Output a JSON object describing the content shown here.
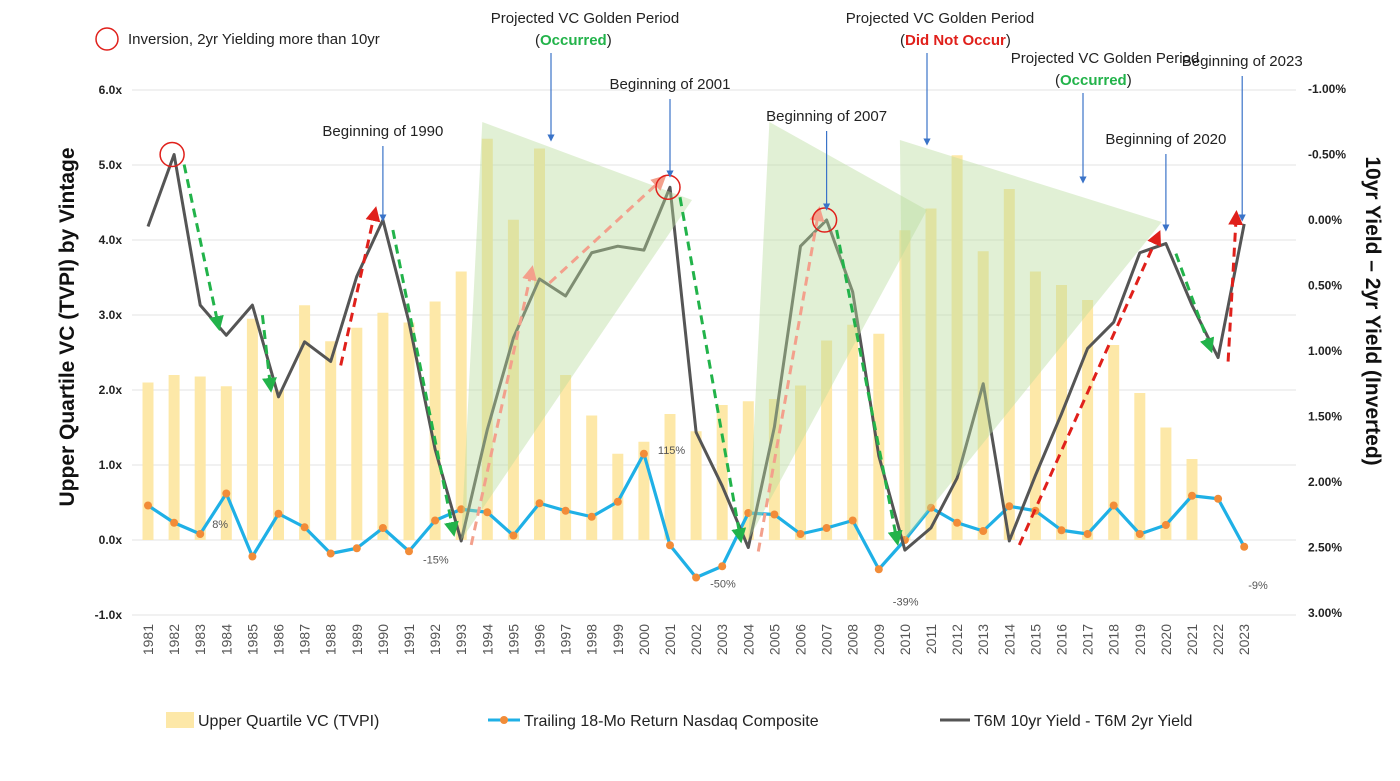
{
  "chart_data": {
    "type": "bar",
    "xlabel": "",
    "ylabel": "Upper Quartile VC (TVPI) by Vintage",
    "y2label": "10yr Yield – 2yr Yield (Inverted)",
    "ylim": [
      -1.0,
      6.0
    ],
    "y2lim": [
      3.0,
      -1.0
    ],
    "y2_inverted": true,
    "yticks": [
      "-1.0x",
      "0.0x",
      "1.0x",
      "2.0x",
      "3.0x",
      "4.0x",
      "5.0x",
      "6.0x"
    ],
    "y2ticks": [
      "3.00%",
      "2.50%",
      "2.00%",
      "1.50%",
      "1.00%",
      "0.50%",
      "0.00%",
      "-0.50%",
      "-1.00%"
    ],
    "categories": [
      "1981",
      "1982",
      "1983",
      "1984",
      "1985",
      "1986",
      "1987",
      "1988",
      "1989",
      "1990",
      "1991",
      "1992",
      "1993",
      "1994",
      "1995",
      "1996",
      "1997",
      "1998",
      "1999",
      "2000",
      "2001",
      "2002",
      "2003",
      "2004",
      "2005",
      "2006",
      "2007",
      "2008",
      "2009",
      "2010",
      "2011",
      "2012",
      "2013",
      "2014",
      "2015",
      "2016",
      "2017",
      "2018",
      "2019",
      "2020",
      "2021",
      "2022",
      "2023"
    ],
    "series": [
      {
        "name": "Upper Quartile VC (TVPI)",
        "type": "bar",
        "axis": "left",
        "color": "#fde8a8",
        "values": [
          2.1,
          2.2,
          2.18,
          2.05,
          2.95,
          2.0,
          3.13,
          2.65,
          2.83,
          3.03,
          2.9,
          3.18,
          3.58,
          5.35,
          4.27,
          5.22,
          2.2,
          1.66,
          1.15,
          1.31,
          1.68,
          1.45,
          1.8,
          1.85,
          1.88,
          2.06,
          2.66,
          2.87,
          2.75,
          4.13,
          4.42,
          5.13,
          3.85,
          4.68,
          3.58,
          3.4,
          3.2,
          2.6,
          1.96,
          1.5,
          1.08,
          0.0,
          0.0
        ]
      },
      {
        "name": "Trailing 18-Mo Return Nasdaq Composite",
        "type": "line",
        "axis": "left",
        "color": "#1fb0e6",
        "marker_color": "#f28c38",
        "values": [
          0.46,
          0.23,
          0.08,
          0.62,
          -0.22,
          0.35,
          0.17,
          -0.18,
          -0.11,
          0.16,
          -0.15,
          0.26,
          0.41,
          0.37,
          0.06,
          0.49,
          0.39,
          0.31,
          0.51,
          1.15,
          -0.07,
          -0.5,
          -0.35,
          0.36,
          0.34,
          0.08,
          0.16,
          0.26,
          -0.39,
          0.0,
          0.43,
          0.23,
          0.12,
          0.45,
          0.39,
          0.13,
          0.08,
          0.46,
          0.08,
          0.2,
          0.59,
          0.55,
          -0.09
        ]
      },
      {
        "name": "T6M 10yr Yield - T6M 2yr Yield",
        "type": "line",
        "axis": "right",
        "color": "#555555",
        "values": [
          0.05,
          -0.5,
          0.65,
          0.88,
          0.65,
          1.35,
          0.93,
          1.08,
          0.43,
          0.0,
          0.78,
          1.75,
          2.45,
          1.6,
          0.9,
          0.45,
          0.58,
          0.25,
          0.2,
          0.23,
          -0.25,
          1.62,
          2.03,
          2.5,
          1.58,
          0.2,
          0.0,
          0.55,
          1.8,
          2.52,
          2.35,
          1.97,
          1.25,
          2.45,
          1.95,
          1.48,
          0.98,
          0.78,
          0.25,
          0.18,
          0.65,
          1.05,
          0.03
        ]
      }
    ],
    "data_labels": [
      {
        "year": "1983",
        "text": "8%"
      },
      {
        "year": "1991",
        "text": "-15%"
      },
      {
        "year": "2000",
        "text": "115%"
      },
      {
        "year": "2002",
        "text": "-50%"
      },
      {
        "year": "2009",
        "text": "-39%"
      },
      {
        "year": "2023",
        "text": "-9%"
      }
    ],
    "inversions": [
      "1982",
      "2001",
      "2007"
    ],
    "golden_periods": [
      {
        "start": "1993",
        "peak_year": "1994",
        "end": "2001"
      },
      {
        "start": "2004",
        "peak_year": "2005",
        "end": "2010"
      },
      {
        "start": "2010",
        "peak_year": "2010",
        "end": "2019"
      }
    ],
    "annotations": [
      {
        "text": "Beginning of 1990",
        "year": "1990"
      },
      {
        "text": "Beginning of 2001",
        "year": "2001"
      },
      {
        "text": "Beginning of 2007",
        "year": "2007"
      },
      {
        "text": "Beginning of 2020",
        "year": "2020"
      },
      {
        "text": "Beginning of 2023",
        "year": "2023"
      }
    ],
    "golden_labels": [
      {
        "line1": "Projected VC Golden Period",
        "open": "(",
        "status": "Occurred",
        "close": ")",
        "status_color": "#22b34a",
        "year": "1996"
      },
      {
        "line1": "Projected VC Golden Period",
        "open": "(",
        "status": "Did Not Occur",
        "close": ")",
        "status_color": "#e0201b",
        "year": "2010"
      },
      {
        "line1": "Projected VC Golden Period",
        "open": "(",
        "status": "Occurred",
        "close": ")",
        "status_color": "#22b34a",
        "year": "2015"
      }
    ],
    "inversion_legend": "Inversion, 2yr Yielding more than 10yr",
    "legend_position": "bottom"
  }
}
